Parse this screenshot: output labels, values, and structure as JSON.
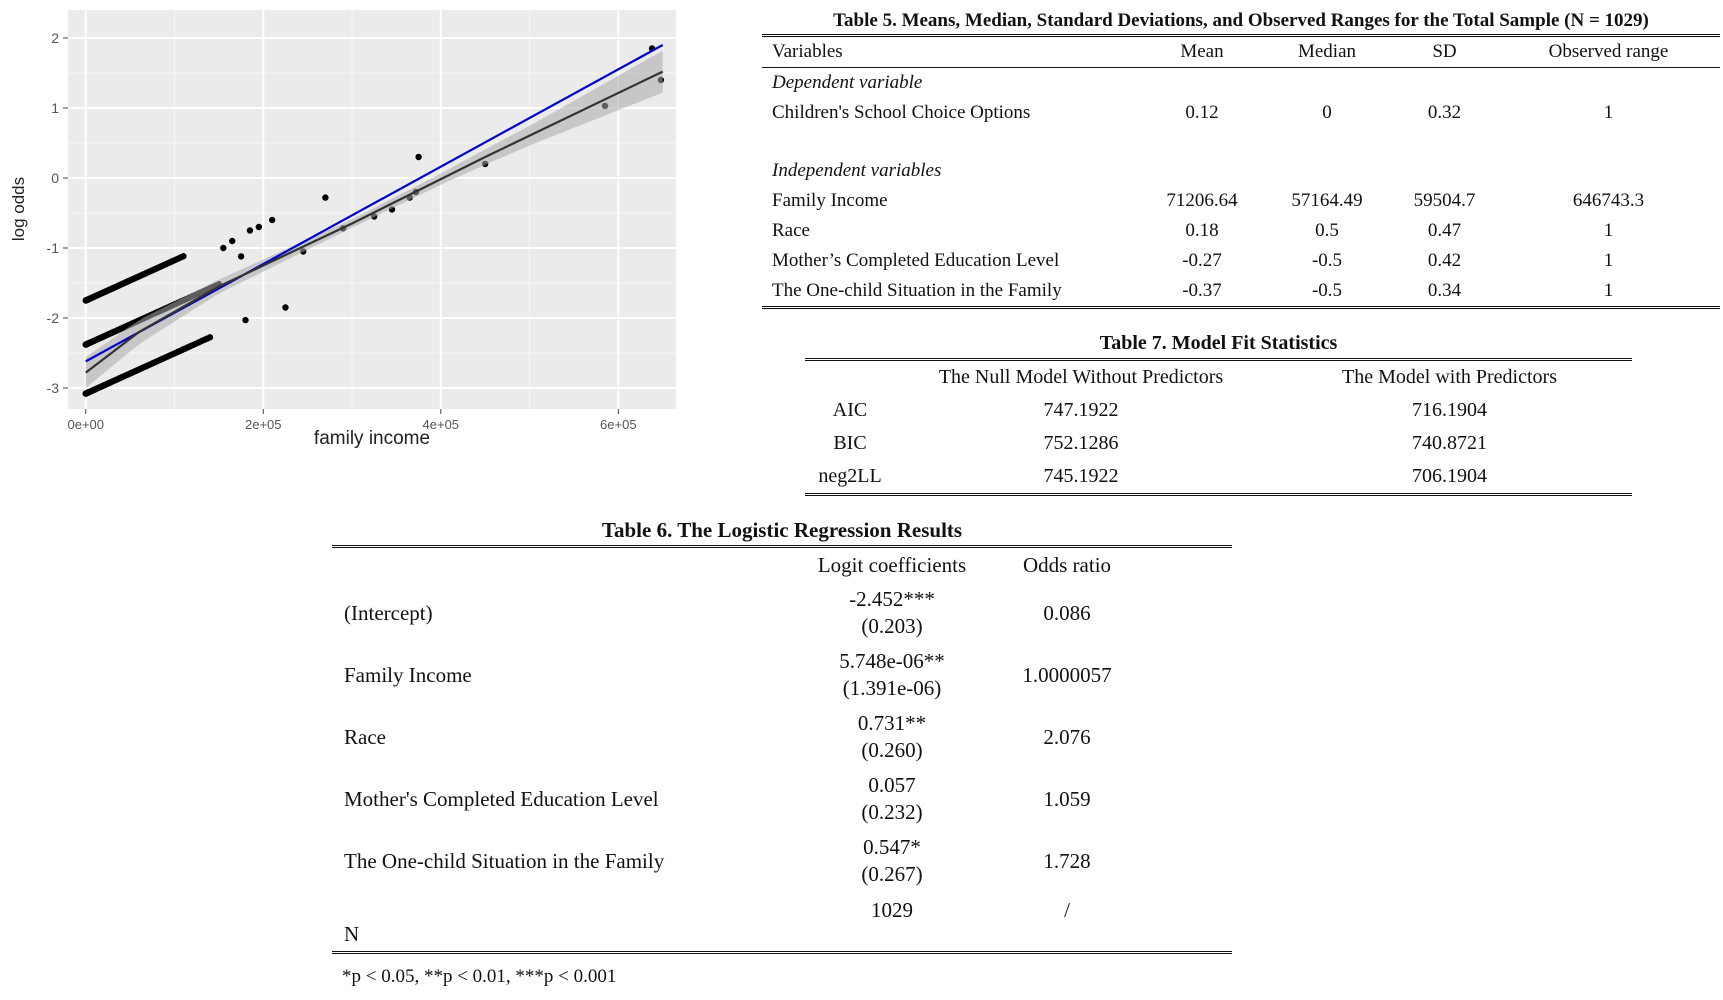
{
  "chart_data": {
    "type": "scatter",
    "xlabel": "family income",
    "ylabel": "log odds",
    "xlim": [
      -20000,
      665000
    ],
    "ylim": [
      -3.3,
      2.4
    ],
    "x_ticks": [
      {
        "value": 0,
        "label": "0e+00"
      },
      {
        "value": 200000,
        "label": "2e+05"
      },
      {
        "value": 400000,
        "label": "4e+05"
      },
      {
        "value": 600000,
        "label": "6e+05"
      }
    ],
    "y_ticks": [
      {
        "value": -3,
        "label": "-3"
      },
      {
        "value": -2,
        "label": "-2"
      },
      {
        "value": -1,
        "label": "-1"
      },
      {
        "value": 0,
        "label": "0"
      },
      {
        "value": 1,
        "label": "1"
      },
      {
        "value": 2,
        "label": "2"
      }
    ],
    "grid": true,
    "panel_background": "#ebebeb",
    "point_color": "#000000",
    "bands": [
      {
        "name": "top",
        "x_start": 0,
        "x_end": 110000,
        "y_start": -1.75,
        "slope_per_unit": 5.748e-06
      },
      {
        "name": "middle",
        "x_start": 0,
        "x_end": 150000,
        "y_start": -2.38,
        "slope_per_unit": 5.748e-06
      },
      {
        "name": "bottom",
        "x_start": 0,
        "x_end": 140000,
        "y_start": -3.08,
        "slope_per_unit": 5.748e-06
      }
    ],
    "points": [
      {
        "x": 155000,
        "y": -1.0
      },
      {
        "x": 165000,
        "y": -0.9
      },
      {
        "x": 175000,
        "y": -1.12
      },
      {
        "x": 185000,
        "y": -0.75
      },
      {
        "x": 195000,
        "y": -0.7
      },
      {
        "x": 210000,
        "y": -0.6
      },
      {
        "x": 180000,
        "y": -2.03
      },
      {
        "x": 225000,
        "y": -1.85
      },
      {
        "x": 245000,
        "y": -1.05
      },
      {
        "x": 270000,
        "y": -0.28
      },
      {
        "x": 290000,
        "y": -0.72
      },
      {
        "x": 325000,
        "y": -0.55
      },
      {
        "x": 345000,
        "y": -0.45
      },
      {
        "x": 365000,
        "y": -0.28
      },
      {
        "x": 372000,
        "y": -0.2
      },
      {
        "x": 375000,
        "y": 0.3
      },
      {
        "x": 450000,
        "y": 0.2
      },
      {
        "x": 585000,
        "y": 1.03
      },
      {
        "x": 638000,
        "y": 1.85
      },
      {
        "x": 648000,
        "y": 1.4
      }
    ],
    "series": [
      {
        "name": "",
        "kind": "linear",
        "color": "#0000cc",
        "x": [
          0,
          650000
        ],
        "y": [
          -2.62,
          1.9
        ]
      },
      {
        "name": "",
        "kind": "loess",
        "color": "#333333",
        "x": [
          0,
          60000,
          150000,
          300000,
          450000,
          650000
        ],
        "y": [
          -2.78,
          -2.2,
          -1.55,
          -0.65,
          0.3,
          1.52
        ]
      }
    ],
    "band": {
      "color": "#aaaaaa",
      "x": [
        0,
        150000,
        300000,
        400000,
        500000,
        650000
      ],
      "half_width": [
        0.22,
        0.1,
        0.06,
        0.08,
        0.14,
        0.3
      ]
    }
  },
  "table5": {
    "title": "Table 5. Means, Median, Standard Deviations, and Observed Ranges for the Total Sample (N = 1029)",
    "headers": [
      "Variables",
      "Mean",
      "Median",
      "SD",
      "Observed range"
    ],
    "section_dependent": "Dependent variable",
    "section_independent": "Independent variables",
    "dependent_rows": [
      {
        "label": "Children's School Choice Options",
        "mean": "0.12",
        "median": "0",
        "sd": "0.32",
        "range": "1"
      }
    ],
    "independent_rows": [
      {
        "label": "Family Income",
        "mean": "71206.64",
        "median": "57164.49",
        "sd": "59504.7",
        "range": "646743.3"
      },
      {
        "label": "Race",
        "mean": "0.18",
        "median": "0.5",
        "sd": "0.47",
        "range": "1"
      },
      {
        "label": "Mother’s Completed Education Level",
        "mean": "-0.27",
        "median": "-0.5",
        "sd": "0.42",
        "range": "1"
      },
      {
        "label": "The One-child Situation in the Family",
        "mean": "-0.37",
        "median": "-0.5",
        "sd": "0.34",
        "range": "1"
      }
    ]
  },
  "table7": {
    "title": "Table 7. Model Fit Statistics",
    "headers": [
      "The Null Model Without Predictors",
      "The Model with Predictors"
    ],
    "rows": [
      {
        "label": "AIC",
        "null": "747.1922",
        "model": "716.1904"
      },
      {
        "label": "BIC",
        "null": "752.1286",
        "model": "740.8721"
      },
      {
        "label": "neg2LL",
        "null": "745.1922",
        "model": "706.1904"
      }
    ]
  },
  "table6": {
    "title": "Table 6. The Logistic Regression Results",
    "headers": [
      "Logit coefficients",
      "Odds ratio"
    ],
    "rows": [
      {
        "label": "(Intercept)",
        "coef": "-2.452***",
        "se": "(0.203)",
        "odds": "0.086"
      },
      {
        "label": "Family Income",
        "coef": "5.748e-06**",
        "se": "(1.391e-06)",
        "odds": "1.0000057"
      },
      {
        "label": "Race",
        "coef": "0.731**",
        "se": "(0.260)",
        "odds": "2.076"
      },
      {
        "label": "Mother's Completed Education Level",
        "coef": "0.057",
        "se": "(0.232)",
        "odds": "1.059"
      },
      {
        "label": "The One-child Situation in the Family",
        "coef": "0.547*",
        "se": "(0.267)",
        "odds": "1.728"
      }
    ],
    "n_label": "N",
    "n_value": "1029",
    "n_odds": "/",
    "footnote": "*p < 0.05, **p < 0.01, ***p < 0.001"
  }
}
